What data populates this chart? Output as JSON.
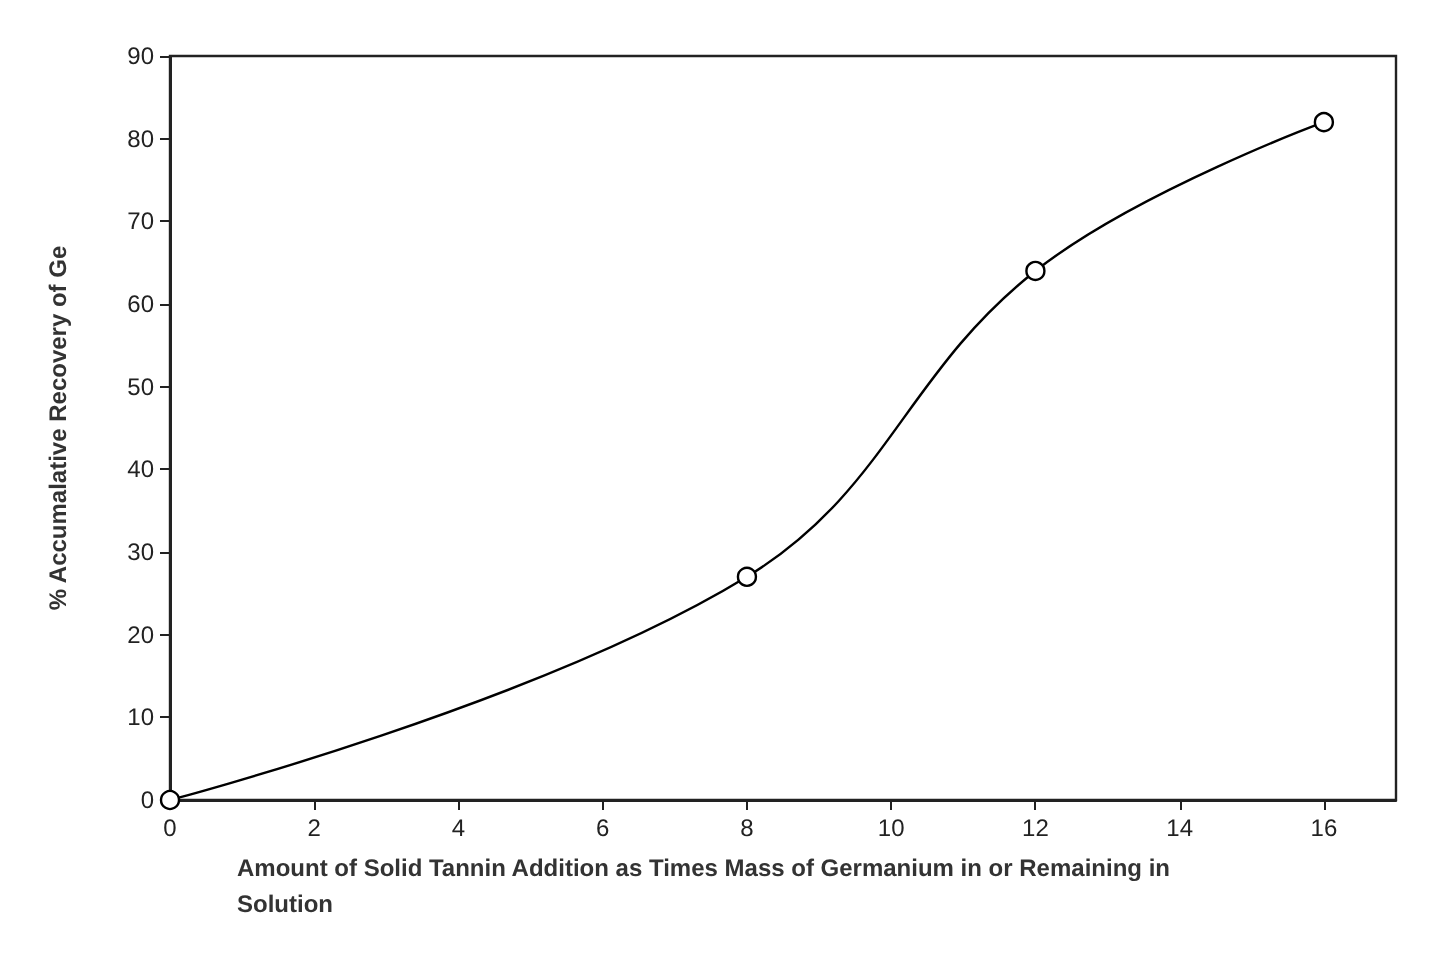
{
  "chart_data": {
    "type": "line",
    "xlabel": "Amount of Solid Tannin Addition as Times Mass of Germanium in or Remaining in Solution",
    "ylabel": "% Accumalative Recovery of Ge",
    "x": [
      0,
      8,
      12,
      16
    ],
    "series": [
      {
        "color": "#000000",
        "values": [
          0,
          27,
          64,
          82
        ]
      }
    ],
    "xlim": [
      0,
      17
    ],
    "xticks": [
      0,
      2,
      4,
      6,
      8,
      10,
      12,
      14,
      16
    ],
    "ylim": [
      0,
      90
    ],
    "yticks": [
      0,
      10,
      20,
      30,
      40,
      50,
      60,
      70,
      80,
      90
    ],
    "grid": false,
    "marker": "circle",
    "line_style": "solid"
  }
}
